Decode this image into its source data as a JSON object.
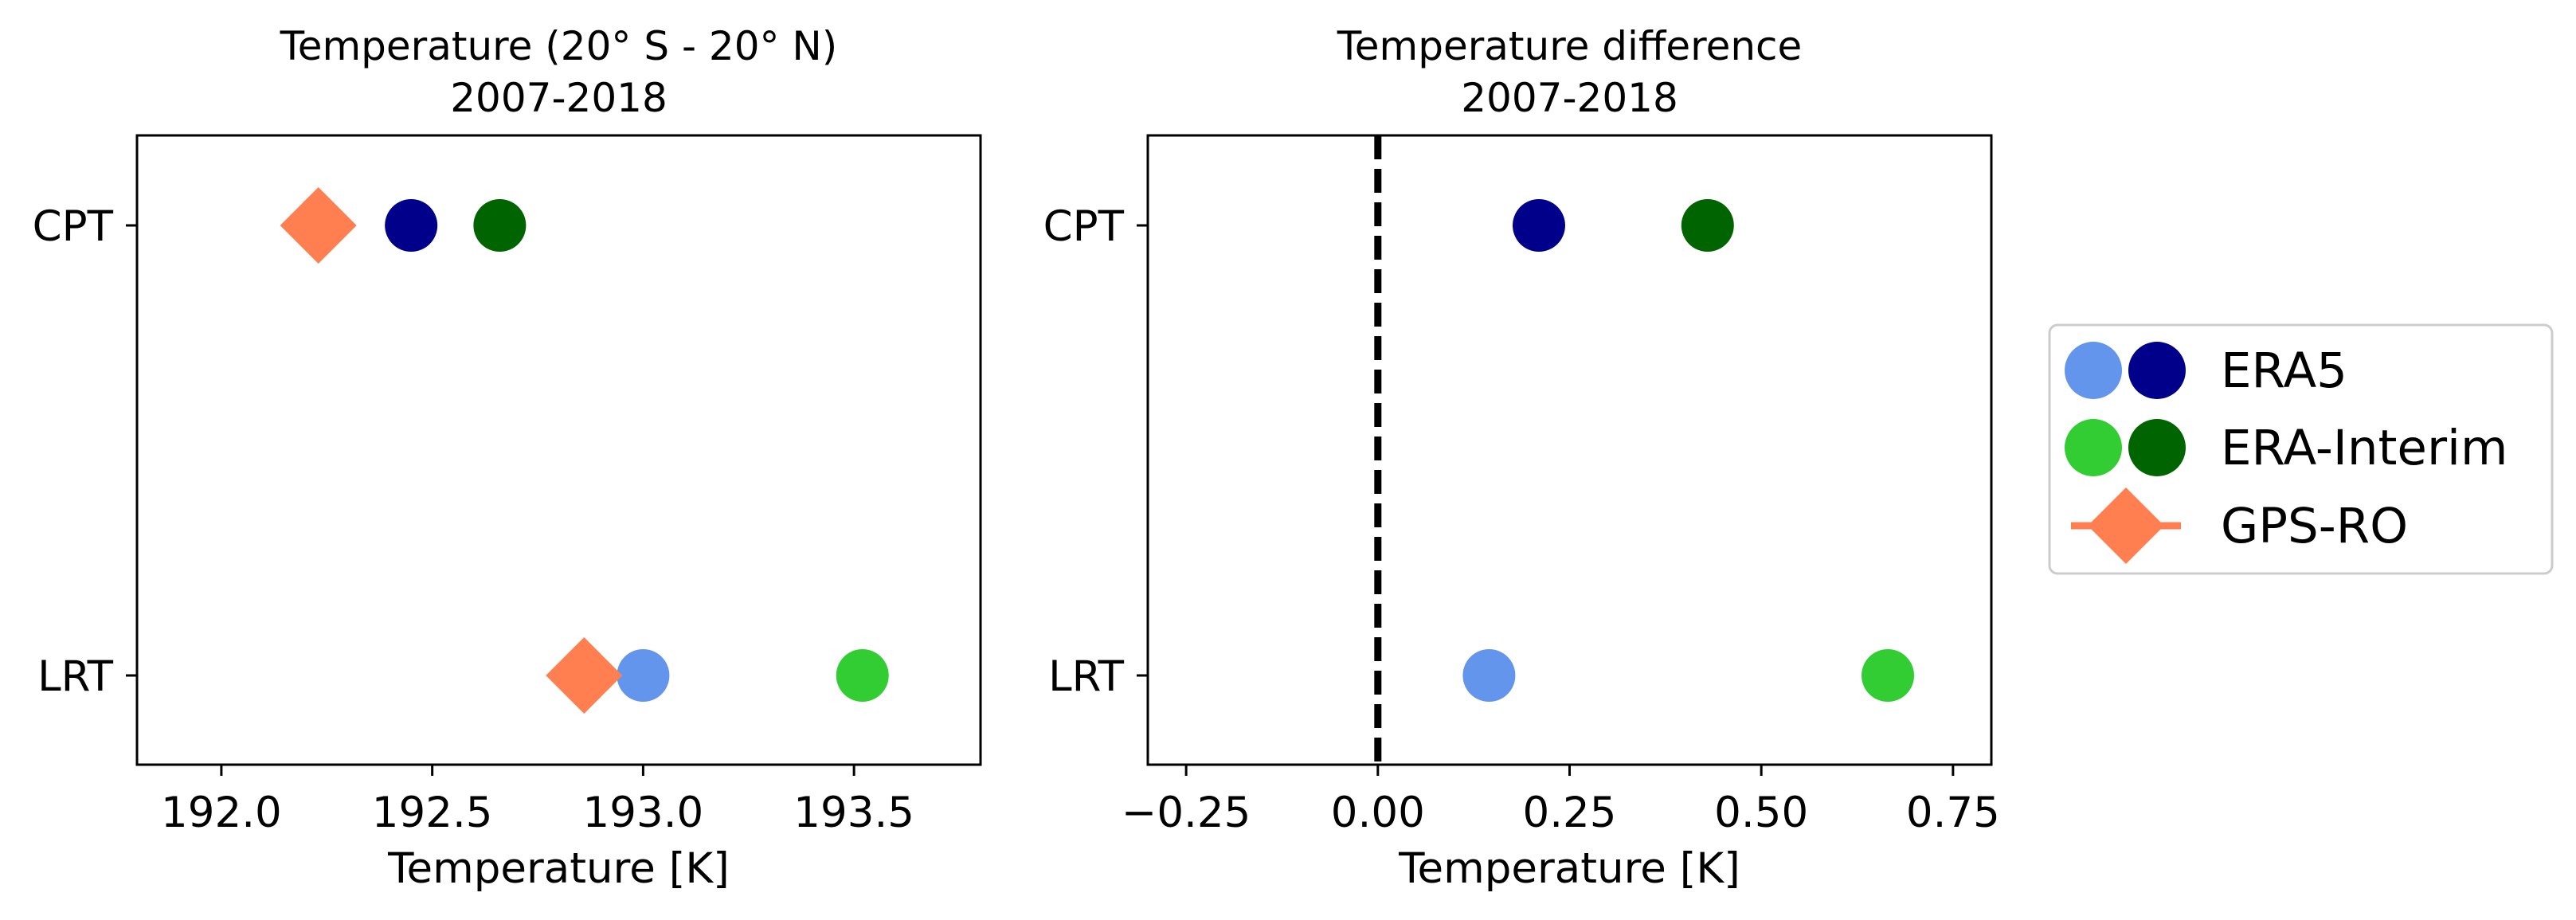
{
  "chart_data": [
    {
      "type": "scatter",
      "title_lines": [
        "Temperature (20° S - 20° N)",
        "2007-2018"
      ],
      "xlabel": "Temperature [K]",
      "ylabel": "",
      "xlim": [
        191.8,
        193.8
      ],
      "xticks": [
        192.0,
        192.5,
        193.0,
        193.5
      ],
      "xtick_labels": [
        "192.0",
        "192.5",
        "193.0",
        "193.5"
      ],
      "categories": [
        "CPT",
        "LRT"
      ],
      "grid": false,
      "series": [
        {
          "name": "ERA5",
          "marker": "circle",
          "points": [
            {
              "category": "CPT",
              "x": 192.45,
              "color": "#00008b"
            },
            {
              "category": "LRT",
              "x": 193.0,
              "color": "#6495ed"
            }
          ]
        },
        {
          "name": "ERA-Interim",
          "marker": "circle",
          "points": [
            {
              "category": "CPT",
              "x": 192.66,
              "color": "#006400"
            },
            {
              "category": "LRT",
              "x": 193.52,
              "color": "#32cd32"
            }
          ]
        },
        {
          "name": "GPS-RO",
          "marker": "diamond",
          "points": [
            {
              "category": "CPT",
              "x": 192.23,
              "color": "#ff7f50"
            },
            {
              "category": "LRT",
              "x": 192.86,
              "color": "#ff7f50"
            }
          ]
        }
      ]
    },
    {
      "type": "scatter",
      "title_lines": [
        "Temperature difference",
        "2007-2018"
      ],
      "xlabel": "Temperature [K]",
      "ylabel": "",
      "xlim": [
        -0.3,
        0.8
      ],
      "xticks": [
        -0.25,
        0.0,
        0.25,
        0.5,
        0.75
      ],
      "xtick_labels": [
        "−0.25",
        "0.00",
        "0.25",
        "0.50",
        "0.75"
      ],
      "categories": [
        "CPT",
        "LRT"
      ],
      "grid": false,
      "reference_line": {
        "x": 0.0,
        "style": "dashed",
        "color": "#000000"
      },
      "series": [
        {
          "name": "ERA5",
          "marker": "circle",
          "points": [
            {
              "category": "CPT",
              "x": 0.21,
              "color": "#00008b"
            },
            {
              "category": "LRT",
              "x": 0.145,
              "color": "#6495ed"
            }
          ]
        },
        {
          "name": "ERA-Interim",
          "marker": "circle",
          "points": [
            {
              "category": "CPT",
              "x": 0.43,
              "color": "#006400"
            },
            {
              "category": "LRT",
              "x": 0.665,
              "color": "#32cd32"
            }
          ]
        }
      ]
    }
  ],
  "legend": {
    "placement": "right",
    "entries": [
      {
        "label": "ERA5",
        "marker": "circle",
        "colors": [
          "#6495ed",
          "#00008b"
        ]
      },
      {
        "label": "ERA-Interim",
        "marker": "circle",
        "colors": [
          "#32cd32",
          "#006400"
        ]
      },
      {
        "label": "GPS-RO",
        "marker": "diamond",
        "colors": [
          "#ff7f50"
        ]
      }
    ]
  }
}
